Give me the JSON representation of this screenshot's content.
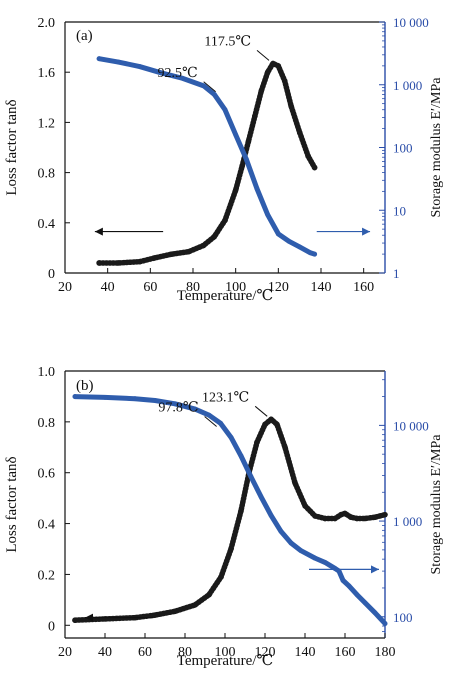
{
  "colors": {
    "tan_delta": "#1a1a1a",
    "storage_modulus": "#2f5dad",
    "right_axis": "#2a4da8"
  },
  "chart_data": [
    {
      "type": "line",
      "panel_label": "(a)",
      "xlabel": "Temperature/℃",
      "ylabel": "Loss factor tanδ",
      "y2label": "Storage modulus E′/MPa",
      "xlim": [
        20,
        170
      ],
      "ylim": [
        0,
        2.0
      ],
      "y2lim": [
        1,
        10000
      ],
      "y2scale": "log",
      "xticks": [
        20,
        40,
        60,
        80,
        100,
        120,
        140,
        160
      ],
      "yticks": [
        0,
        0.4,
        0.8,
        1.2,
        1.6,
        2.0
      ],
      "ytick_labels": [
        "0",
        "0.4",
        "0.8",
        "1.2",
        "1.6",
        "2.0"
      ],
      "y2ticks": [
        1,
        10,
        100,
        1000,
        10000
      ],
      "y2tick_labels": [
        "1",
        "10",
        "100",
        "1 000",
        "10 000"
      ],
      "series": [
        {
          "axis": "left",
          "x": [
            36,
            45,
            55,
            62,
            70,
            78,
            85,
            90,
            95,
            100,
            103,
            106,
            109,
            112,
            115,
            117.5,
            120,
            123,
            126,
            130,
            134,
            137
          ],
          "y": [
            0.08,
            0.08,
            0.09,
            0.12,
            0.15,
            0.17,
            0.22,
            0.29,
            0.42,
            0.66,
            0.85,
            1.05,
            1.25,
            1.45,
            1.6,
            1.67,
            1.65,
            1.53,
            1.33,
            1.12,
            0.93,
            0.84
          ]
        },
        {
          "axis": "right",
          "x": [
            36,
            45,
            55,
            65,
            75,
            85,
            90,
            95,
            100,
            105,
            110,
            115,
            120,
            125,
            130,
            135,
            137
          ],
          "y": [
            2600,
            2300,
            1950,
            1550,
            1270,
            960,
            700,
            400,
            160,
            65,
            22,
            8.5,
            4.2,
            3.2,
            2.6,
            2.1,
            2.0
          ]
        }
      ],
      "annotations": [
        {
          "text": "117.5℃",
          "x": 117.5,
          "y": 1.67
        },
        {
          "text": "92.5℃",
          "x": 92.5,
          "y": 1.42
        }
      ],
      "arrows": [
        {
          "direction": "left",
          "from_x": 66,
          "to_x": 34,
          "y": 0.33
        },
        {
          "direction": "right",
          "from_x": 138,
          "to_x": 163,
          "y": 0.33
        }
      ]
    },
    {
      "type": "line",
      "panel_label": "(b)",
      "xlabel": "Temperature/℃",
      "ylabel": "Loss factor tanδ",
      "y2label": "Storage modulus E′/MPa",
      "xlim": [
        20,
        180
      ],
      "ylim": [
        -0.05,
        1.0
      ],
      "y2lim": [
        60,
        37000
      ],
      "y2scale": "log",
      "xticks": [
        20,
        40,
        60,
        80,
        100,
        120,
        140,
        160,
        180
      ],
      "yticks": [
        0,
        0.2,
        0.4,
        0.6,
        0.8,
        1.0
      ],
      "ytick_labels": [
        "0",
        "0.2",
        "0.4",
        "0.6",
        "0.8",
        "1.0"
      ],
      "y2ticks": [
        100,
        1000,
        10000
      ],
      "y2tick_labels": [
        "100",
        "1 000",
        "10 000"
      ],
      "series": [
        {
          "axis": "left",
          "x": [
            25,
            40,
            55,
            65,
            75,
            85,
            92,
            98,
            103,
            108,
            112,
            116,
            120,
            123.1,
            126,
            130,
            135,
            140,
            145,
            150,
            155,
            158,
            160,
            163,
            166,
            170,
            175,
            180
          ],
          "y": [
            0.02,
            0.025,
            0.03,
            0.04,
            0.055,
            0.08,
            0.12,
            0.19,
            0.3,
            0.45,
            0.6,
            0.72,
            0.79,
            0.81,
            0.79,
            0.7,
            0.56,
            0.47,
            0.43,
            0.42,
            0.42,
            0.435,
            0.44,
            0.425,
            0.42,
            0.42,
            0.425,
            0.435
          ]
        },
        {
          "axis": "right",
          "x": [
            25,
            40,
            55,
            65,
            75,
            85,
            92,
            97.8,
            103,
            108,
            113,
            118,
            123,
            128,
            133,
            138,
            145,
            150,
            155,
            157,
            159,
            162,
            166,
            170,
            175,
            180
          ],
          "y": [
            20000,
            19600,
            19000,
            18200,
            16800,
            14800,
            12800,
            10500,
            7500,
            4800,
            2900,
            1800,
            1150,
            780,
            590,
            490,
            410,
            370,
            320,
            300,
            240,
            210,
            170,
            140,
            110,
            85
          ]
        }
      ],
      "annotations": [
        {
          "text": "123.1℃",
          "x": 123.1,
          "y": 0.81
        },
        {
          "text": "97.8℃",
          "x": 97.8,
          "y": 0.77
        }
      ],
      "arrows": [
        {
          "direction": "left",
          "from_x": 64,
          "to_x": 30,
          "y": 0.03
        },
        {
          "direction": "right",
          "from_x": 142,
          "to_x": 177,
          "y": 0.22
        }
      ]
    }
  ]
}
